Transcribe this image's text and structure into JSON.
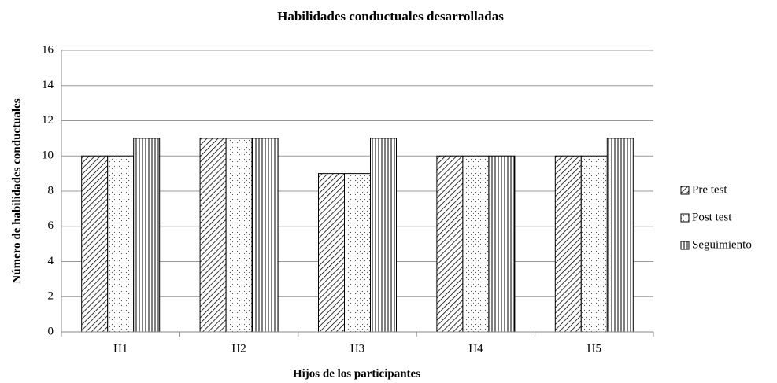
{
  "chart_data": {
    "type": "bar",
    "title": "Habilidades conductuales desarrolladas",
    "xlabel": "Hijos de los participantes",
    "ylabel": "Número de habilidades conductuales",
    "categories": [
      "H1",
      "H2",
      "H3",
      "H4",
      "H5"
    ],
    "series": [
      {
        "name": "Pre test",
        "color": "#000000",
        "pattern": "diagonal",
        "values": [
          10,
          11,
          9,
          10,
          10
        ]
      },
      {
        "name": "Post test",
        "color": "#000000",
        "pattern": "dots",
        "values": [
          10,
          11,
          9,
          10,
          10
        ]
      },
      {
        "name": "Seguimiento",
        "color": "#000000",
        "pattern": "vertical",
        "values": [
          11,
          11,
          11,
          10,
          11
        ]
      }
    ],
    "ylim": [
      0,
      16
    ],
    "yticks": [
      0,
      2,
      4,
      6,
      8,
      10,
      12,
      14,
      16
    ],
    "grid": true,
    "legend": "right"
  }
}
